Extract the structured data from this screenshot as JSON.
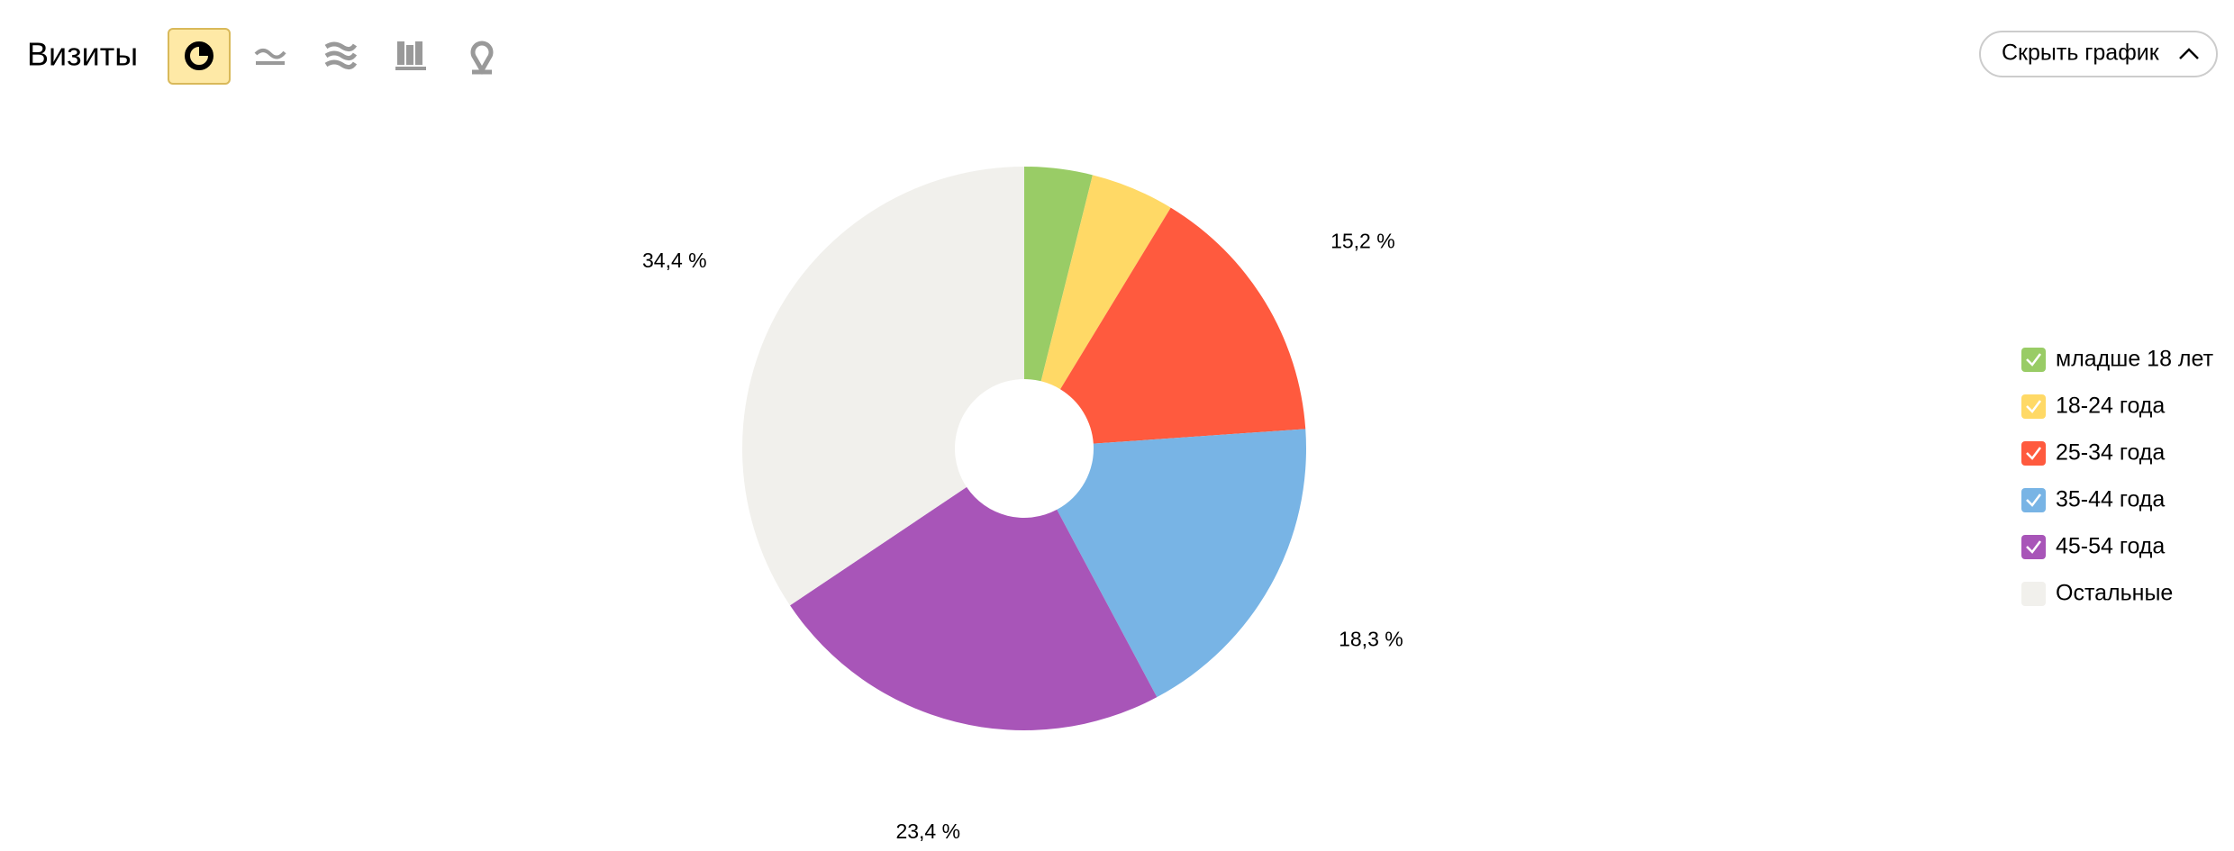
{
  "header": {
    "title": "Визиты",
    "button": "Скрыть график"
  },
  "chart_data": {
    "type": "pie",
    "categories": [
      "младше 18 лет",
      "18-24 года",
      "25-34 года",
      "35-44 года",
      "45-54 года",
      "Остальные"
    ],
    "values": [
      3.9,
      4.8,
      15.2,
      18.3,
      23.4,
      34.4
    ],
    "value_labels": [
      null,
      null,
      "15,2 %",
      "18,3 %",
      "23,4 %",
      "34,4 %"
    ],
    "colors": [
      "#99cc66",
      "#ffd966",
      "#ff5a3e",
      "#78b4e5",
      "#a855b8",
      "#f1f0ec"
    ],
    "donut": true
  }
}
